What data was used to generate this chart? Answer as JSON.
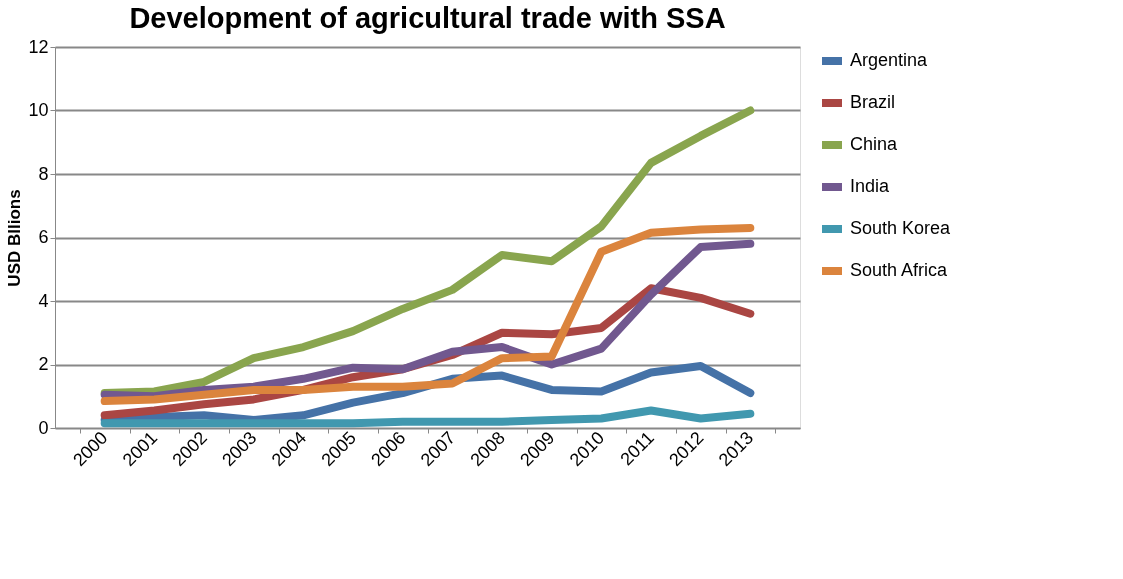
{
  "chart_data": {
    "type": "line",
    "title": "Development of agricultural trade with SSA",
    "ylabel": "USD Bllions",
    "categories": [
      "2000",
      "2001",
      "2002",
      "2003",
      "2004",
      "2005",
      "2006",
      "2007",
      "2008",
      "2009",
      "2010",
      "2011",
      "2012",
      "2013"
    ],
    "series": [
      {
        "name": "Argentina",
        "color": "#4572a7",
        "values": [
          0.25,
          0.35,
          0.4,
          0.25,
          0.4,
          0.8,
          1.1,
          1.55,
          1.65,
          1.2,
          1.15,
          1.75,
          1.95,
          1.1
        ]
      },
      {
        "name": "Brazil",
        "color": "#aa4643",
        "values": [
          0.4,
          0.55,
          0.75,
          0.9,
          1.2,
          1.6,
          1.85,
          2.3,
          3.0,
          2.95,
          3.15,
          4.4,
          4.1,
          3.6
        ]
      },
      {
        "name": "China",
        "color": "#89a54e",
        "values": [
          1.1,
          1.15,
          1.45,
          2.2,
          2.55,
          3.05,
          3.75,
          4.35,
          5.45,
          5.25,
          6.35,
          8.35,
          9.2,
          10.0
        ]
      },
      {
        "name": "India",
        "color": "#71588f",
        "values": [
          1.05,
          1.0,
          1.2,
          1.3,
          1.55,
          1.9,
          1.85,
          2.4,
          2.55,
          2.0,
          2.5,
          4.2,
          5.7,
          5.8
        ]
      },
      {
        "name": "South Korea",
        "color": "#4198af",
        "values": [
          0.15,
          0.15,
          0.15,
          0.15,
          0.15,
          0.15,
          0.2,
          0.2,
          0.2,
          0.25,
          0.3,
          0.55,
          0.3,
          0.45
        ]
      },
      {
        "name": "South Africa",
        "color": "#db843d",
        "values": [
          0.85,
          0.9,
          1.05,
          1.2,
          1.2,
          1.3,
          1.3,
          1.4,
          2.2,
          2.25,
          5.55,
          6.15,
          6.25,
          6.3
        ]
      }
    ],
    "ylim": [
      0,
      12
    ],
    "yticks": [
      0,
      2,
      4,
      6,
      8,
      10,
      12
    ],
    "grid": "y",
    "legend": "right",
    "marker": "none",
    "line_style": "solid"
  }
}
